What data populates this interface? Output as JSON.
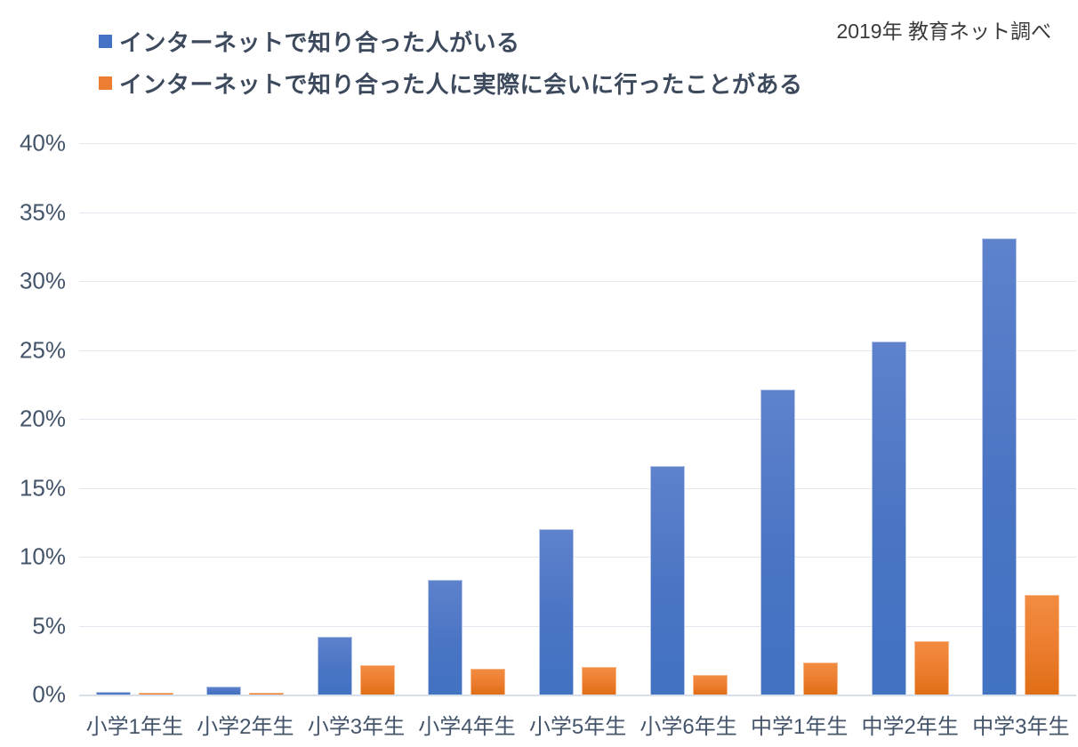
{
  "source_note": "2019年 教育ネット調べ",
  "colors": {
    "series_blue": "#4472C4",
    "series_orange": "#ED7D31",
    "axis_text": "#44546A",
    "legend_text": "#3D4A5D",
    "gridline": "#E3E8F0"
  },
  "chart_data": {
    "type": "bar",
    "title": "",
    "xlabel": "",
    "ylabel": "",
    "ylim": [
      0,
      40
    ],
    "y_tick_values": [
      40,
      35,
      30,
      25,
      20,
      15,
      10,
      5,
      0
    ],
    "y_tick_labels": [
      "40%",
      "35%",
      "30%",
      "25%",
      "20%",
      "15%",
      "10%",
      "5%",
      "0%"
    ],
    "grid": true,
    "legend_position": "top-left",
    "categories": [
      "小学1年生",
      "小学2年生",
      "小学3年生",
      "小学4年生",
      "小学5年生",
      "小学6年生",
      "中学1年生",
      "中学2年生",
      "中学3年生"
    ],
    "series": [
      {
        "name": "インターネットで知り合った人がいる",
        "color": "#4472C4",
        "values": [
          0.2,
          0.6,
          4.2,
          8.3,
          12.0,
          16.6,
          22.1,
          25.6,
          33.1
        ]
      },
      {
        "name": "インターネットで知り合った人に実際に会いに行ったことがある",
        "color": "#ED7D31",
        "values": [
          0.1,
          0.1,
          2.1,
          1.9,
          2.0,
          1.4,
          2.3,
          3.9,
          7.2
        ]
      }
    ]
  }
}
